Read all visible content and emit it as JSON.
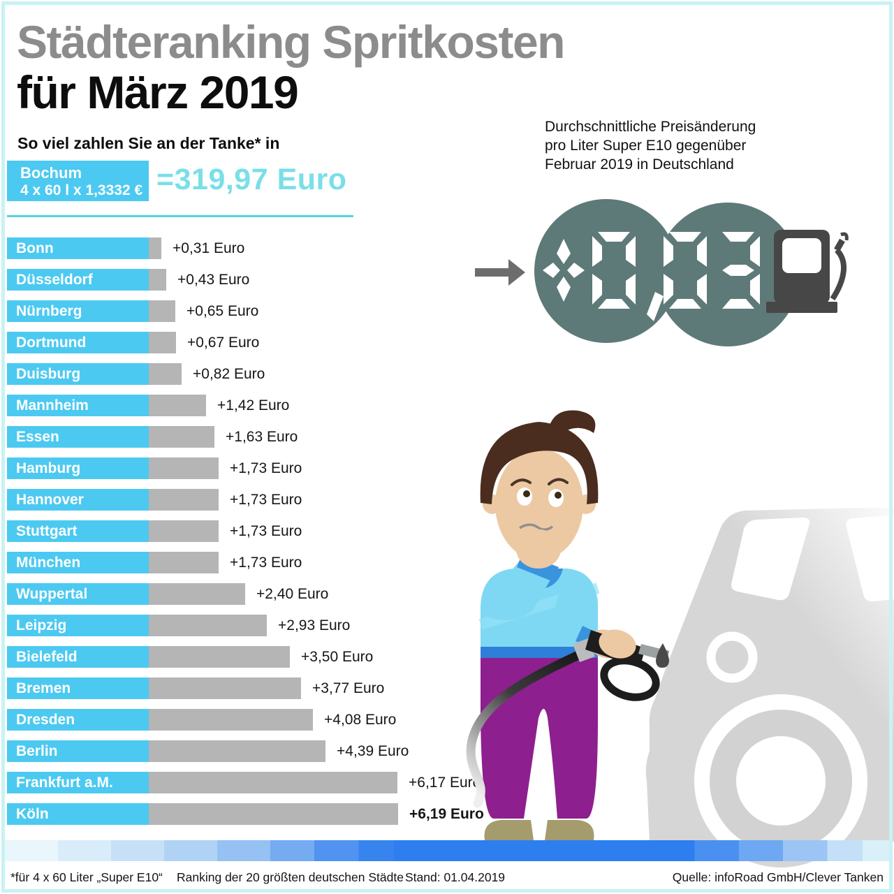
{
  "header": {
    "title_line1": "Städteranking Spritkosten",
    "title_line2": "für März 2019",
    "subtitle": "So viel zahlen Sie an der Tanke* in"
  },
  "baseline": {
    "city": "Bochum",
    "formula": "4 x 60 l x 1,3332 €",
    "total": "=319,97 Euro"
  },
  "chart_data": {
    "type": "bar",
    "title": "Städteranking Spritkosten für März 2019",
    "subtitle": "So viel zahlen Sie an der Tanke* in",
    "baseline_city": "Bochum",
    "baseline_total_euro": 319.97,
    "value_suffix": " Euro",
    "categories": [
      "Bonn",
      "Düsseldorf",
      "Nürnberg",
      "Dortmund",
      "Duisburg",
      "Mannheim",
      "Essen",
      "Hamburg",
      "Hannover",
      "Stuttgart",
      "München",
      "Wuppertal",
      "Leipzig",
      "Bielefeld",
      "Bremen",
      "Dresden",
      "Berlin",
      "Frankfurt a.M.",
      "Köln"
    ],
    "values": [
      0.31,
      0.43,
      0.65,
      0.67,
      0.82,
      1.42,
      1.63,
      1.73,
      1.73,
      1.73,
      1.73,
      2.4,
      2.93,
      3.5,
      3.77,
      4.08,
      4.39,
      6.17,
      6.19
    ],
    "labels": [
      "+0,31 Euro",
      "+0,43 Euro",
      "+0,65 Euro",
      "+0,67 Euro",
      "+0,82 Euro",
      "+1,42 Euro",
      "+1,63 Euro",
      "+1,73 Euro",
      "+1,73 Euro",
      "+1,73 Euro",
      "+1,73 Euro",
      "+2,40 Euro",
      "+2,93 Euro",
      "+3,50 Euro",
      "+3,77 Euro",
      "+4,08 Euro",
      "+4,39 Euro",
      "+6,17 Euro",
      "+6,19 Euro"
    ],
    "highlight_last_label": true,
    "bar_colors": {
      "city_segment": "#4cc9f0",
      "extension_segment": "#b5b5b5"
    }
  },
  "avg_box": {
    "line1": "Durchschnittliche Preisänderung",
    "line2": "pro Liter Super E10 gegenüber",
    "line3": "Februar 2019 in Deutschland",
    "display_value": "+0,03",
    "display_color": "#5e7a78"
  },
  "footer": {
    "note": "*für 4 x 60 Liter „Super E10“",
    "ranking_info": "Ranking der 20 größten deutschen Städte",
    "date": "Stand: 01.04.2019",
    "source": "Quelle: infoRoad GmbH/Clever Tanken"
  }
}
